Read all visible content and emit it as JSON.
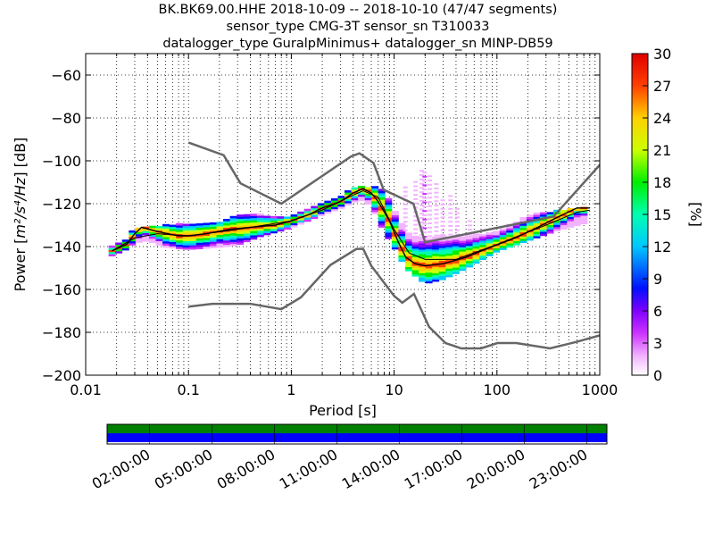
{
  "title": {
    "line1": "BK.BK69.00.HHE   2018-10-09 -- 2018-10-10  (47/47 segments)",
    "line2": "sensor_type CMG-3T sensor_sn T310033",
    "line3": "datalogger_type GuralpMinimus+ datalogger_sn MINP-DB59"
  },
  "chart_data": [
    {
      "type": "heatmap",
      "xlabel": "Period [s]",
      "ylabel_prefix": "Power [",
      "ylabel_math": "m²/s⁴/Hz",
      "ylabel_suffix": "] [dB]",
      "x_scale": "log",
      "xlim": [
        0.01,
        1000
      ],
      "ylim": [
        -200,
        -50
      ],
      "x_ticks": [
        0.01,
        0.1,
        1,
        10,
        100,
        1000
      ],
      "x_tick_labels": [
        "0.01",
        "0.1",
        "1",
        "10",
        "100",
        "1000"
      ],
      "y_ticks": [
        -200,
        -180,
        -160,
        -140,
        -120,
        -100,
        -80,
        -60
      ],
      "y_tick_labels": [
        "−200",
        "−180",
        "−160",
        "−140",
        "−120",
        "−100",
        "−80",
        "−60"
      ],
      "grid": true,
      "colorbar": {
        "label": "[%]",
        "range": [
          0,
          30
        ],
        "ticks": [
          0,
          3,
          6,
          9,
          12,
          15,
          18,
          21,
          24,
          27,
          30
        ],
        "tick_labels": [
          "0",
          "3",
          "6",
          "9",
          "12",
          "15",
          "18",
          "21",
          "24",
          "27",
          "30"
        ]
      },
      "mode_curve": [
        [
          0.018,
          -142
        ],
        [
          0.025,
          -139
        ],
        [
          0.03,
          -134
        ],
        [
          0.035,
          -131
        ],
        [
          0.05,
          -133
        ],
        [
          0.08,
          -135
        ],
        [
          0.1,
          -135
        ],
        [
          0.15,
          -134
        ],
        [
          0.25,
          -132
        ],
        [
          0.4,
          -131
        ],
        [
          0.7,
          -130
        ],
        [
          1.0,
          -128
        ],
        [
          1.5,
          -125
        ],
        [
          2.0,
          -122
        ],
        [
          3.0,
          -119
        ],
        [
          4.0,
          -115
        ],
        [
          5.0,
          -113
        ],
        [
          6.0,
          -115
        ],
        [
          7.0,
          -119
        ],
        [
          9.0,
          -128
        ],
        [
          11.0,
          -138
        ],
        [
          13.0,
          -145
        ],
        [
          16.0,
          -148
        ],
        [
          20.0,
          -149
        ],
        [
          30.0,
          -148
        ],
        [
          50.0,
          -145
        ],
        [
          80.0,
          -141
        ],
        [
          150.0,
          -136
        ],
        [
          250.0,
          -131
        ],
        [
          400.0,
          -126
        ],
        [
          600.0,
          -122
        ],
        [
          800.0,
          -122
        ]
      ],
      "mean_curve": [
        [
          0.018,
          -142
        ],
        [
          0.03,
          -136
        ],
        [
          0.05,
          -134
        ],
        [
          0.1,
          -135
        ],
        [
          0.3,
          -132
        ],
        [
          1.0,
          -128
        ],
        [
          2.0,
          -123
        ],
        [
          4.0,
          -116
        ],
        [
          5.0,
          -114
        ],
        [
          7.0,
          -117
        ],
        [
          10.0,
          -132
        ],
        [
          14.0,
          -143
        ],
        [
          20.0,
          -146
        ],
        [
          40.0,
          -146
        ],
        [
          100.0,
          -139
        ],
        [
          300.0,
          -130
        ],
        [
          600.0,
          -124
        ],
        [
          800.0,
          -123
        ]
      ],
      "nhnm": [
        [
          0.1,
          -91.5
        ],
        [
          0.22,
          -97.4
        ],
        [
          0.32,
          -110.5
        ],
        [
          0.8,
          -120
        ],
        [
          3.8,
          -98
        ],
        [
          4.6,
          -96.5
        ],
        [
          6.3,
          -101
        ],
        [
          7.9,
          -113.5
        ],
        [
          15.4,
          -120
        ],
        [
          20.0,
          -138
        ],
        [
          354.8,
          -126
        ],
        [
          10000,
          -48.5
        ]
      ],
      "nlnm": [
        [
          0.1,
          -168
        ],
        [
          0.17,
          -166.7
        ],
        [
          0.4,
          -166.7
        ],
        [
          0.8,
          -169.2
        ],
        [
          1.24,
          -163.7
        ],
        [
          2.4,
          -148.6
        ],
        [
          4.3,
          -141.1
        ],
        [
          5.0,
          -141.1
        ],
        [
          6.0,
          -149
        ],
        [
          10.0,
          -163
        ],
        [
          12.0,
          -166.2
        ],
        [
          15.6,
          -162.1
        ],
        [
          21.9,
          -177.5
        ],
        [
          31.6,
          -185
        ],
        [
          45.0,
          -187.5
        ],
        [
          70.0,
          -187.5
        ],
        [
          101.0,
          -185
        ],
        [
          154.0,
          -185
        ],
        [
          328.0,
          -187.5
        ],
        [
          600.0,
          -184.4
        ],
        [
          10000,
          -168
        ]
      ],
      "psd_band_samples": [
        [
          0.018,
          -144,
          -140
        ],
        [
          0.025,
          -141,
          -136
        ],
        [
          0.03,
          -138,
          -131
        ],
        [
          0.04,
          -137,
          -131
        ],
        [
          0.06,
          -140,
          -130
        ],
        [
          0.1,
          -141,
          -129
        ],
        [
          0.2,
          -140,
          -129
        ],
        [
          0.3,
          -139,
          -125
        ],
        [
          0.5,
          -135,
          -125
        ],
        [
          1.0,
          -131,
          -126
        ],
        [
          2.0,
          -125,
          -120
        ],
        [
          3.0,
          -122,
          -117
        ],
        [
          4.0,
          -119,
          -112
        ],
        [
          5.0,
          -118,
          -112
        ],
        [
          6.0,
          -121,
          -112
        ],
        [
          8.0,
          -133,
          -113
        ],
        [
          10.0,
          -140,
          -123
        ],
        [
          13.0,
          -150,
          -133
        ],
        [
          20.0,
          -157,
          -136
        ],
        [
          30.0,
          -155,
          -135
        ],
        [
          50.0,
          -150,
          -135
        ],
        [
          100.0,
          -142,
          -133
        ],
        [
          200.0,
          -137,
          -125
        ],
        [
          400.0,
          -132,
          -123
        ],
        [
          700.0,
          -129,
          -122
        ]
      ],
      "scatter_highs": [
        [
          13.0,
          -112
        ],
        [
          16.0,
          -110
        ],
        [
          18.0,
          -105
        ],
        [
          20.0,
          -106
        ],
        [
          22.0,
          -107
        ],
        [
          25.0,
          -111
        ],
        [
          30.0,
          -118
        ],
        [
          35.0,
          -116
        ],
        [
          40.0,
          -122
        ],
        [
          55.0,
          -128
        ]
      ]
    },
    {
      "type": "table",
      "name": "data-availability",
      "time_ticks": [
        "02:00:00",
        "05:00:00",
        "08:00:00",
        "11:00:00",
        "14:00:00",
        "17:00:00",
        "20:00:00",
        "23:00:00"
      ],
      "rows": [
        {
          "color": "#008000",
          "coverage": 1.0
        },
        {
          "color": "#0000ff",
          "coverage": 1.0
        }
      ]
    }
  ],
  "colors": {
    "model_curve": "#666666",
    "mode_curve": "#000000",
    "mean_curve": "#000000",
    "grid": "#000000"
  }
}
